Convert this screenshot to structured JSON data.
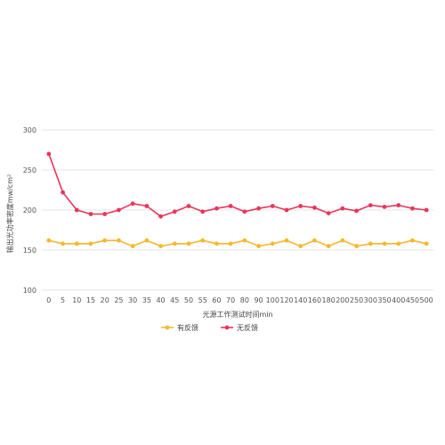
{
  "chart_data": {
    "type": "line",
    "xlabel": "光源工作测试时间min",
    "ylabel": "输出光功率密度mw/cm²",
    "ylim": [
      100,
      300
    ],
    "yticks": [
      100,
      150,
      200,
      250,
      300
    ],
    "grid": true,
    "legend": "bottom-center",
    "categories": [
      "0",
      "5",
      "10",
      "15",
      "20",
      "25",
      "30",
      "35",
      "40",
      "45",
      "50",
      "55",
      "60",
      "70",
      "80",
      "90",
      "100",
      "120",
      "140",
      "160",
      "180",
      "200",
      "250",
      "300",
      "350",
      "400",
      "450",
      "500"
    ],
    "series": [
      {
        "name": "有反馈",
        "color": "#f5b82e",
        "values": [
          162,
          158,
          158,
          158,
          162,
          162,
          155,
          162,
          155,
          158,
          158,
          162,
          158,
          158,
          162,
          155,
          158,
          162,
          155,
          162,
          155,
          162,
          155,
          158,
          158,
          158,
          162,
          158
        ]
      },
      {
        "name": "无反馈",
        "color": "#e8365c",
        "values": [
          270,
          222,
          200,
          195,
          195,
          200,
          208,
          205,
          192,
          198,
          205,
          198,
          202,
          205,
          198,
          202,
          205,
          200,
          205,
          203,
          196,
          202,
          199,
          206,
          204,
          206,
          202,
          200
        ]
      }
    ]
  }
}
